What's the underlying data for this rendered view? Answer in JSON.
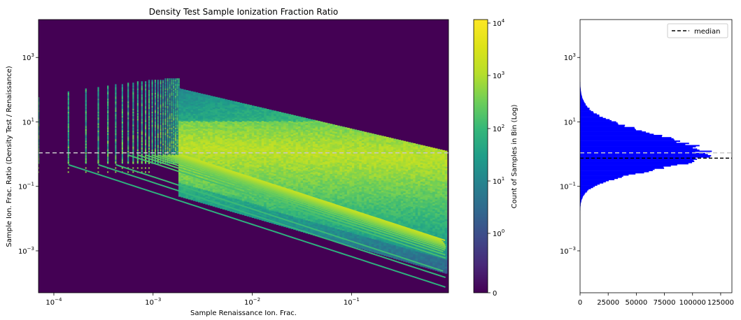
{
  "chart_data": [
    {
      "type": "heatmap",
      "title": "Density Test Sample Ionization Fraction Ratio",
      "xlabel": "Sample Renaissance Ion. Frac.",
      "ylabel": "Sample Ion. Frac. Ratio (Density Test / Renaissance)",
      "xscale": "log",
      "yscale": "log",
      "xlim": [
        7e-05,
        0.95
      ],
      "ylim": [
        5e-05,
        15000
      ],
      "xticks": [
        {
          "value": 0.0001,
          "base": "10",
          "exp": "−4"
        },
        {
          "value": 0.001,
          "base": "10",
          "exp": "−3"
        },
        {
          "value": 0.01,
          "base": "10",
          "exp": "−2"
        },
        {
          "value": 0.1,
          "base": "10",
          "exp": "−1"
        }
      ],
      "yticks": [
        {
          "value": 0.001,
          "base": "10",
          "exp": "−3"
        },
        {
          "value": 0.1,
          "base": "10",
          "exp": "−1"
        },
        {
          "value": 10,
          "base": "10",
          "exp": "1"
        },
        {
          "value": 1000,
          "base": "10",
          "exp": "3"
        }
      ],
      "reference_line_y": 1.1,
      "reference_line_color": "#c8c8c8",
      "background_color": "#440154",
      "colorbar": {
        "label": "Count of Samples in Bin (Log)",
        "colormap": "viridis",
        "range": [
          0,
          20000
        ],
        "ticks": [
          {
            "text": "0",
            "base": "",
            "exp": ""
          },
          {
            "text": "",
            "base": "10",
            "exp": "0"
          },
          {
            "text": "",
            "base": "10",
            "exp": "1"
          },
          {
            "text": "",
            "base": "10",
            "exp": "2"
          },
          {
            "text": "",
            "base": "10",
            "exp": "3"
          },
          {
            "text": "",
            "base": "10",
            "exp": "4"
          }
        ]
      }
    },
    {
      "type": "bar",
      "orientation": "horizontal",
      "yscale": "log",
      "ylim": [
        5e-05,
        15000
      ],
      "xlim": [
        0,
        135000
      ],
      "bar_color": "#0000ff",
      "xticks": [
        "0",
        "25000",
        "50000",
        "75000",
        "100000",
        "125000"
      ],
      "xtick_values": [
        0,
        25000,
        50000,
        75000,
        100000,
        125000
      ],
      "yticks": [
        {
          "value": 0.001,
          "base": "10",
          "exp": "−3"
        },
        {
          "value": 0.1,
          "base": "10",
          "exp": "−1"
        },
        {
          "value": 10,
          "base": "10",
          "exp": "1"
        },
        {
          "value": 1000,
          "base": "10",
          "exp": "3"
        }
      ],
      "distribution": {
        "shape": "log-normal",
        "peak_count": 113000,
        "peak_ratio": 1.0
      },
      "median": 0.75,
      "reference_line_y": 1.1,
      "legend": {
        "entries": [
          "median"
        ],
        "location": "upper right"
      }
    }
  ]
}
